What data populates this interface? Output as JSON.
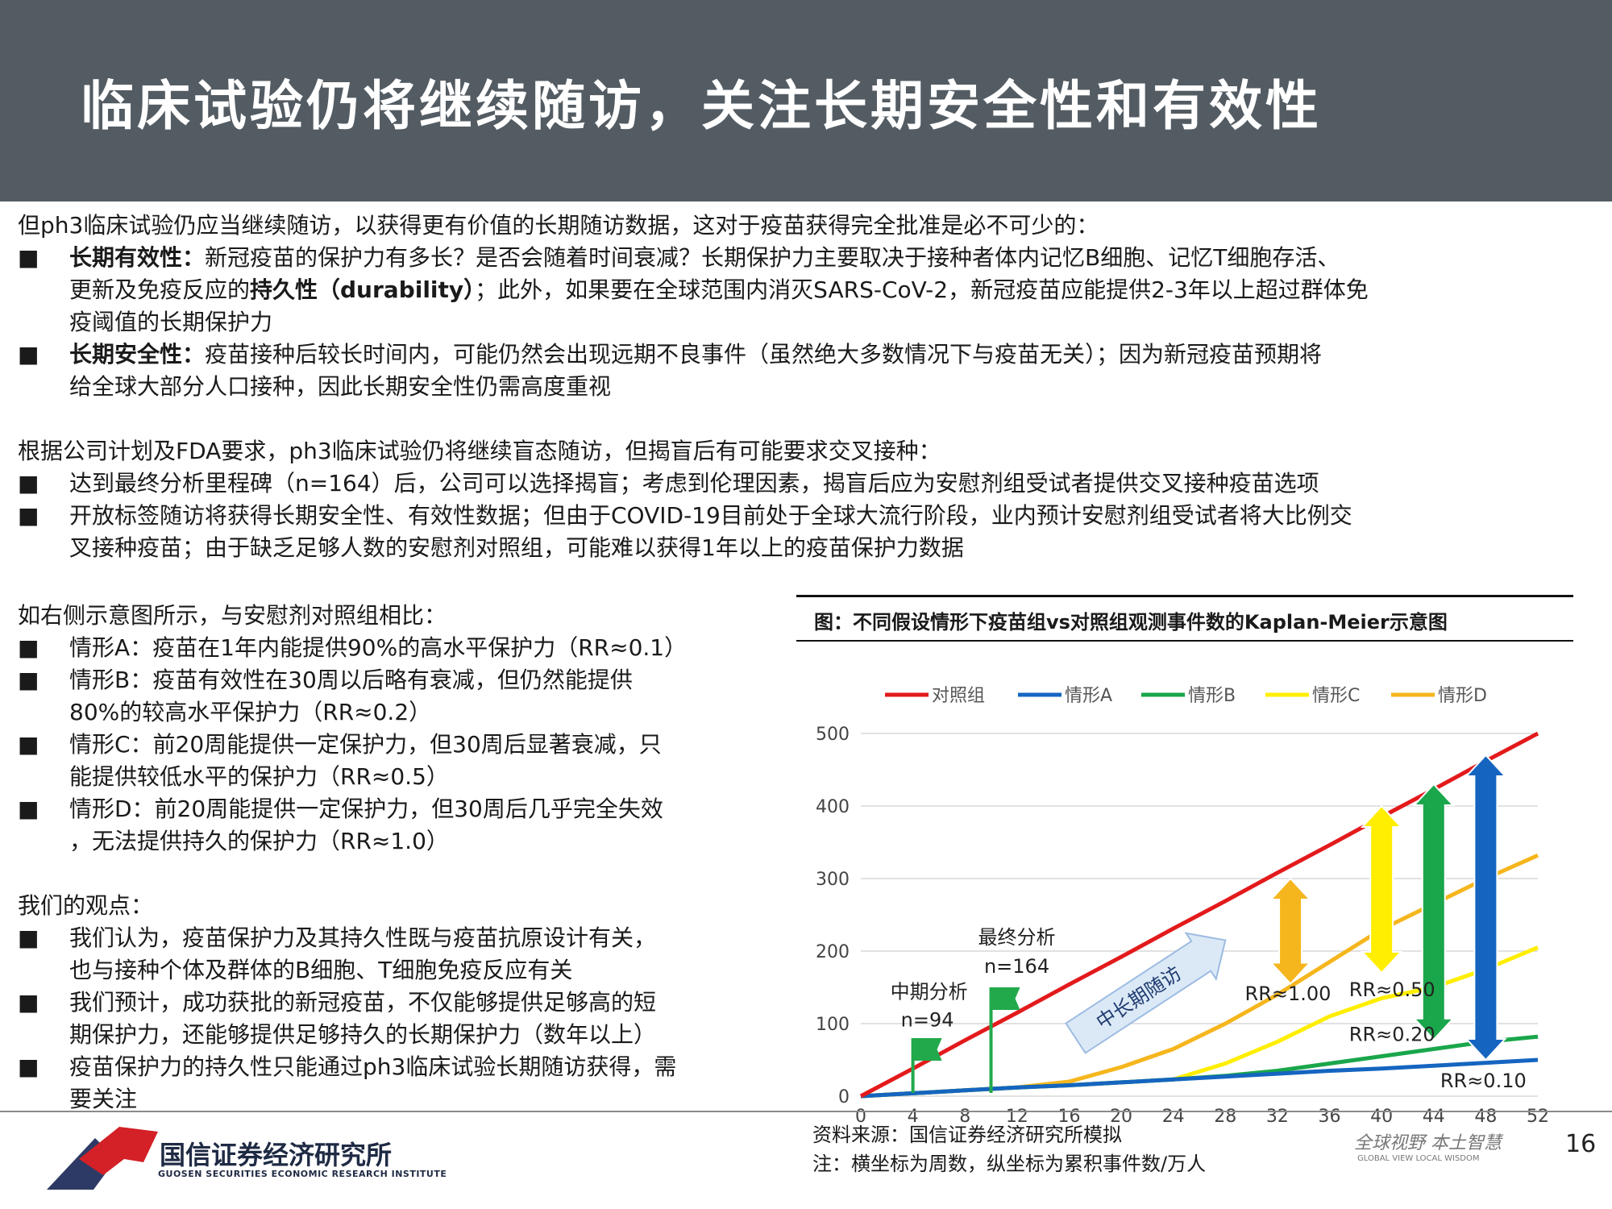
{
  "header": {
    "title": "临床试验仍将继续随访，关注长期安全性和有效性"
  },
  "section1": {
    "intro": "但ph3临床试验仍应当继续随访，以获得更有价值的长期随访数据，这对于疫苗获得完全批准是必不可少的：",
    "bullet_marker": "■",
    "b1_bold": "长期有效性：",
    "b1_line1": "新冠疫苗的保护力有多长？是否会随着时间衰减？长期保护力主要取决于接种者体内记忆B细胞、记忆T细胞存活、",
    "b1_line2_pre": "更新及免疫反应的",
    "b1_line2_bold": "持久性（durability）",
    "b1_line2_post": "；此外，如果要在全球范围内消灭SARS-CoV-2，新冠疫苗应能提供2-3年以上超过群体免",
    "b1_line3": "疫阈值的长期保护力",
    "b2_bold": "长期安全性：",
    "b2_line1": "疫苗接种后较长时间内，可能仍然会出现远期不良事件（虽然绝大多数情况下与疫苗无关）；因为新冠疫苗预期将",
    "b2_line2": "给全球大部分人口接种，因此长期安全性仍需高度重视"
  },
  "section2": {
    "intro": "根据公司计划及FDA要求，ph3临床试验仍将继续盲态随访，但揭盲后有可能要求交叉接种：",
    "b1": "达到最终分析里程碑（n=164）后，公司可以选择揭盲；考虑到伦理因素，揭盲后应为安慰剂组受试者提供交叉接种疫苗选项",
    "b2_line1": "开放标签随访将获得长期安全性、有效性数据；但由于COVID-19目前处于全球大流行阶段，业内预计安慰剂组受试者将大比例交",
    "b2_line2": "叉接种疫苗；由于缺乏足够人数的安慰剂对照组，可能难以获得1年以上的疫苗保护力数据"
  },
  "section3": {
    "intro": "如右侧示意图所示，与安慰剂对照组相比：",
    "a": "情形A：疫苗在1年内能提供90%的高水平保护力（RR≈0.1）",
    "b_line1": "情形B：疫苗有效性在30周以后略有衰减，但仍然能提供",
    "b_line2": "80%的较高水平保护力（RR≈0.2）",
    "c_line1": "情形C：前20周能提供一定保护力，但30周后显著衰减，只",
    "c_line2": "能提供较低水平的保护力（RR≈0.5）",
    "d_line1": "情形D：前20周能提供一定保护力，但30周后几乎完全失效",
    "d_line2": "，无法提供持久的保护力（RR≈1.0）"
  },
  "section4": {
    "intro": "我们的观点：",
    "b1_line1": "我们认为，疫苗保护力及其持久性既与疫苗抗原设计有关，",
    "b1_line2": "也与接种个体及群体的B细胞、T细胞免疫反应有关",
    "b2_line1": "我们预计，成功获批的新冠疫苗，不仅能够提供足够高的短",
    "b2_line2": "期保护力，还能够提供足够持久的长期保护力（数年以上）",
    "b3_line1": "疫苗保护力的持久性只能通过ph3临床试验长期随访获得，需",
    "b3_line2": "要关注"
  },
  "chart_data": {
    "type": "line",
    "title": "图：不同假设情形下疫苗组vs对照组观测事件数的Kaplan-Meier示意图",
    "x": [
      0,
      4,
      8,
      12,
      16,
      20,
      24,
      28,
      32,
      36,
      40,
      44,
      48,
      52
    ],
    "xlim": [
      0,
      52
    ],
    "ylim": [
      0,
      500
    ],
    "xticks": [
      0,
      4,
      8,
      12,
      16,
      20,
      24,
      28,
      32,
      36,
      40,
      44,
      48,
      52
    ],
    "yticks": [
      0,
      100,
      200,
      300,
      400,
      500
    ],
    "grid": true,
    "legend_position": "top",
    "series": [
      {
        "name": "对照组",
        "color": "#e31a1c",
        "values": [
          0,
          38,
          77,
          115,
          154,
          192,
          231,
          269,
          308,
          346,
          385,
          423,
          462,
          500
        ]
      },
      {
        "name": "情形A",
        "color": "#1565c0",
        "values": [
          0,
          4,
          8,
          12,
          15,
          19,
          23,
          27,
          31,
          35,
          38,
          42,
          46,
          50
        ]
      },
      {
        "name": "情形B",
        "color": "#1aa64b",
        "values": [
          0,
          4,
          8,
          12,
          15,
          19,
          23,
          28,
          35,
          45,
          55,
          65,
          75,
          82
        ]
      },
      {
        "name": "情形C",
        "color": "#ffee00",
        "values": [
          0,
          4,
          8,
          12,
          15,
          19,
          23,
          45,
          75,
          110,
          135,
          150,
          175,
          205
        ]
      },
      {
        "name": "情形D",
        "color": "#f5b61d",
        "values": [
          0,
          4,
          8,
          12,
          20,
          40,
          65,
          100,
          140,
          185,
          230,
          265,
          300,
          332
        ]
      }
    ],
    "annotations": {
      "interim_label": "中期分析",
      "interim_n": "n=94",
      "interim_week": 4,
      "final_label": "最终分析",
      "final_n": "n=164",
      "final_week": 10,
      "trend_label": "中长期随访",
      "rr_d": "RR≈1.00",
      "rr_c": "RR≈0.50",
      "rr_b": "RR≈0.20",
      "rr_a": "RR≈0.10"
    },
    "arrows": [
      {
        "week": 33,
        "from": 300,
        "to": 155,
        "color": "#f5b61d"
      },
      {
        "week": 40,
        "from": 400,
        "to": 170,
        "color": "#ffee00"
      },
      {
        "week": 44,
        "from": 430,
        "to": 78,
        "color": "#1aa64b"
      },
      {
        "week": 48,
        "from": 470,
        "to": 50,
        "color": "#1565c0"
      }
    ]
  },
  "footer": {
    "source_line1": "资料来源：国信证券经济研究所模拟",
    "source_line2": "注：横坐标为周数，纵坐标为累积事件数/万人",
    "logo_cn": "国信证券经济研究所",
    "logo_en": "GUOSEN SECURITIES ECONOMIC RESEARCH INSTITUTE",
    "slogan": "全球视野  本土智慧",
    "slogan_en": "GLOBAL VIEW   LOCAL WISDOM",
    "page_number": "16"
  }
}
